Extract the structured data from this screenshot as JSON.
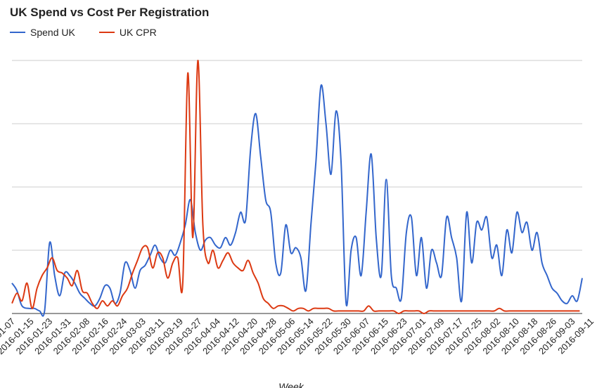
{
  "chart_data": {
    "type": "line",
    "title": "UK Spend vs Cost Per Registration",
    "xlabel": "Week",
    "ylabel": "",
    "ylim": [
      0,
      100
    ],
    "grid": true,
    "legend_position": "top-left",
    "x_first_partial_label": "-01-07",
    "x_tick_labels": [
      "2016-01-15",
      "2016-01-23",
      "2016-01-31",
      "2016-02-08",
      "2016-02-16",
      "2016-02-24",
      "2016-03-03",
      "2016-03-11",
      "2016-03-19",
      "2016-03-27",
      "2016-04-04",
      "2016-04-12",
      "2016-04-20",
      "2016-04-28",
      "2016-05-06",
      "2016-05-14",
      "2016-05-22",
      "2016-05-30",
      "2016-06-07",
      "2016-06-15",
      "2016-06-23",
      "2016-07-01",
      "2016-07-09",
      "2016-07-17",
      "2016-07-25",
      "2016-08-02",
      "2016-08-10",
      "2016-08-18",
      "2016-08-26",
      "2016-09-03",
      "2016-09-11"
    ],
    "x_range": [
      "2016-01-07",
      "2016-09-16"
    ],
    "series": [
      {
        "name": "Spend UK",
        "color": "#3366cc",
        "values": [
          [
            0,
            12
          ],
          [
            2,
            9
          ],
          [
            4,
            3
          ],
          [
            7,
            2
          ],
          [
            9,
            2
          ],
          [
            11,
            1
          ],
          [
            13,
            1
          ],
          [
            15,
            28
          ],
          [
            17,
            15
          ],
          [
            19,
            7
          ],
          [
            21,
            16
          ],
          [
            23,
            15
          ],
          [
            25,
            12
          ],
          [
            27,
            8
          ],
          [
            29,
            6
          ],
          [
            31,
            4
          ],
          [
            33,
            3
          ],
          [
            35,
            6
          ],
          [
            37,
            11
          ],
          [
            39,
            10
          ],
          [
            41,
            4
          ],
          [
            43,
            8
          ],
          [
            45,
            20
          ],
          [
            47,
            17
          ],
          [
            49,
            10
          ],
          [
            51,
            17
          ],
          [
            53,
            19
          ],
          [
            55,
            23
          ],
          [
            57,
            27
          ],
          [
            59,
            22
          ],
          [
            61,
            20
          ],
          [
            63,
            25
          ],
          [
            65,
            23
          ],
          [
            67,
            28
          ],
          [
            69,
            35
          ],
          [
            71,
            45
          ],
          [
            73,
            32
          ],
          [
            75,
            25
          ],
          [
            77,
            29
          ],
          [
            79,
            30
          ],
          [
            81,
            27
          ],
          [
            83,
            26
          ],
          [
            85,
            30
          ],
          [
            87,
            27
          ],
          [
            89,
            32
          ],
          [
            91,
            40
          ],
          [
            93,
            37
          ],
          [
            95,
            65
          ],
          [
            97,
            79
          ],
          [
            99,
            62
          ],
          [
            101,
            45
          ],
          [
            103,
            40
          ],
          [
            105,
            20
          ],
          [
            107,
            16
          ],
          [
            109,
            35
          ],
          [
            111,
            24
          ],
          [
            113,
            26
          ],
          [
            115,
            22
          ],
          [
            117,
            9
          ],
          [
            119,
            35
          ],
          [
            121,
            60
          ],
          [
            123,
            90
          ],
          [
            125,
            75
          ],
          [
            127,
            55
          ],
          [
            129,
            80
          ],
          [
            131,
            60
          ],
          [
            133,
            4
          ],
          [
            135,
            25
          ],
          [
            137,
            30
          ],
          [
            139,
            15
          ],
          [
            141,
            40
          ],
          [
            143,
            63
          ],
          [
            145,
            30
          ],
          [
            147,
            15
          ],
          [
            149,
            53
          ],
          [
            151,
            15
          ],
          [
            153,
            10
          ],
          [
            155,
            6
          ],
          [
            157,
            32
          ],
          [
            159,
            38
          ],
          [
            161,
            15
          ],
          [
            163,
            30
          ],
          [
            165,
            10
          ],
          [
            167,
            25
          ],
          [
            169,
            20
          ],
          [
            171,
            15
          ],
          [
            173,
            38
          ],
          [
            175,
            30
          ],
          [
            177,
            22
          ],
          [
            179,
            5
          ],
          [
            181,
            40
          ],
          [
            183,
            20
          ],
          [
            185,
            36
          ],
          [
            187,
            33
          ],
          [
            189,
            38
          ],
          [
            191,
            22
          ],
          [
            193,
            27
          ],
          [
            195,
            15
          ],
          [
            197,
            33
          ],
          [
            199,
            24
          ],
          [
            201,
            40
          ],
          [
            203,
            32
          ],
          [
            205,
            36
          ],
          [
            207,
            25
          ],
          [
            209,
            32
          ],
          [
            211,
            20
          ],
          [
            213,
            15
          ],
          [
            215,
            10
          ],
          [
            217,
            8
          ],
          [
            219,
            5
          ],
          [
            221,
            4
          ],
          [
            223,
            7
          ],
          [
            225,
            5
          ],
          [
            227,
            14
          ]
        ]
      },
      {
        "name": "UK CPR",
        "color": "#dc3912",
        "values": [
          [
            0,
            4
          ],
          [
            2,
            8
          ],
          [
            4,
            5
          ],
          [
            6,
            12
          ],
          [
            8,
            2
          ],
          [
            10,
            10
          ],
          [
            12,
            15
          ],
          [
            14,
            18
          ],
          [
            16,
            22
          ],
          [
            18,
            17
          ],
          [
            20,
            16
          ],
          [
            22,
            14
          ],
          [
            24,
            11
          ],
          [
            26,
            17
          ],
          [
            28,
            9
          ],
          [
            30,
            8
          ],
          [
            32,
            4
          ],
          [
            34,
            2
          ],
          [
            36,
            5
          ],
          [
            38,
            3
          ],
          [
            40,
            5
          ],
          [
            42,
            3
          ],
          [
            44,
            7
          ],
          [
            46,
            10
          ],
          [
            48,
            16
          ],
          [
            50,
            21
          ],
          [
            52,
            26
          ],
          [
            54,
            26
          ],
          [
            56,
            18
          ],
          [
            58,
            24
          ],
          [
            60,
            22
          ],
          [
            62,
            14
          ],
          [
            64,
            20
          ],
          [
            66,
            22
          ],
          [
            68,
            12
          ],
          [
            70,
            95
          ],
          [
            72,
            30
          ],
          [
            74,
            100
          ],
          [
            76,
            35
          ],
          [
            78,
            20
          ],
          [
            80,
            25
          ],
          [
            82,
            18
          ],
          [
            84,
            21
          ],
          [
            86,
            24
          ],
          [
            88,
            20
          ],
          [
            90,
            18
          ],
          [
            92,
            17
          ],
          [
            94,
            21
          ],
          [
            96,
            16
          ],
          [
            98,
            12
          ],
          [
            100,
            6
          ],
          [
            102,
            4
          ],
          [
            104,
            2
          ],
          [
            106,
            3
          ],
          [
            108,
            3
          ],
          [
            110,
            2
          ],
          [
            112,
            1
          ],
          [
            114,
            2
          ],
          [
            116,
            2
          ],
          [
            118,
            1
          ],
          [
            120,
            2
          ],
          [
            122,
            2
          ],
          [
            124,
            2
          ],
          [
            126,
            2
          ],
          [
            128,
            1
          ],
          [
            130,
            1
          ],
          [
            132,
            1
          ],
          [
            134,
            1
          ],
          [
            136,
            1
          ],
          [
            138,
            1
          ],
          [
            140,
            1
          ],
          [
            142,
            3
          ],
          [
            144,
            1
          ],
          [
            146,
            1
          ],
          [
            148,
            1
          ],
          [
            150,
            1
          ],
          [
            152,
            1
          ],
          [
            154,
            0
          ],
          [
            156,
            1
          ],
          [
            158,
            1
          ],
          [
            160,
            1
          ],
          [
            162,
            1
          ],
          [
            164,
            0
          ],
          [
            166,
            1
          ],
          [
            168,
            1
          ],
          [
            170,
            1
          ],
          [
            172,
            1
          ],
          [
            174,
            1
          ],
          [
            176,
            1
          ],
          [
            178,
            1
          ],
          [
            180,
            1
          ],
          [
            182,
            1
          ],
          [
            184,
            1
          ],
          [
            186,
            1
          ],
          [
            188,
            1
          ],
          [
            190,
            1
          ],
          [
            192,
            1
          ],
          [
            194,
            2
          ],
          [
            196,
            1
          ],
          [
            198,
            1
          ],
          [
            200,
            1
          ],
          [
            202,
            1
          ],
          [
            204,
            1
          ],
          [
            206,
            1
          ],
          [
            208,
            1
          ],
          [
            210,
            1
          ],
          [
            212,
            1
          ],
          [
            214,
            1
          ],
          [
            216,
            1
          ],
          [
            218,
            1
          ],
          [
            220,
            1
          ],
          [
            222,
            1
          ],
          [
            224,
            1
          ],
          [
            226,
            1
          ]
        ]
      }
    ]
  }
}
